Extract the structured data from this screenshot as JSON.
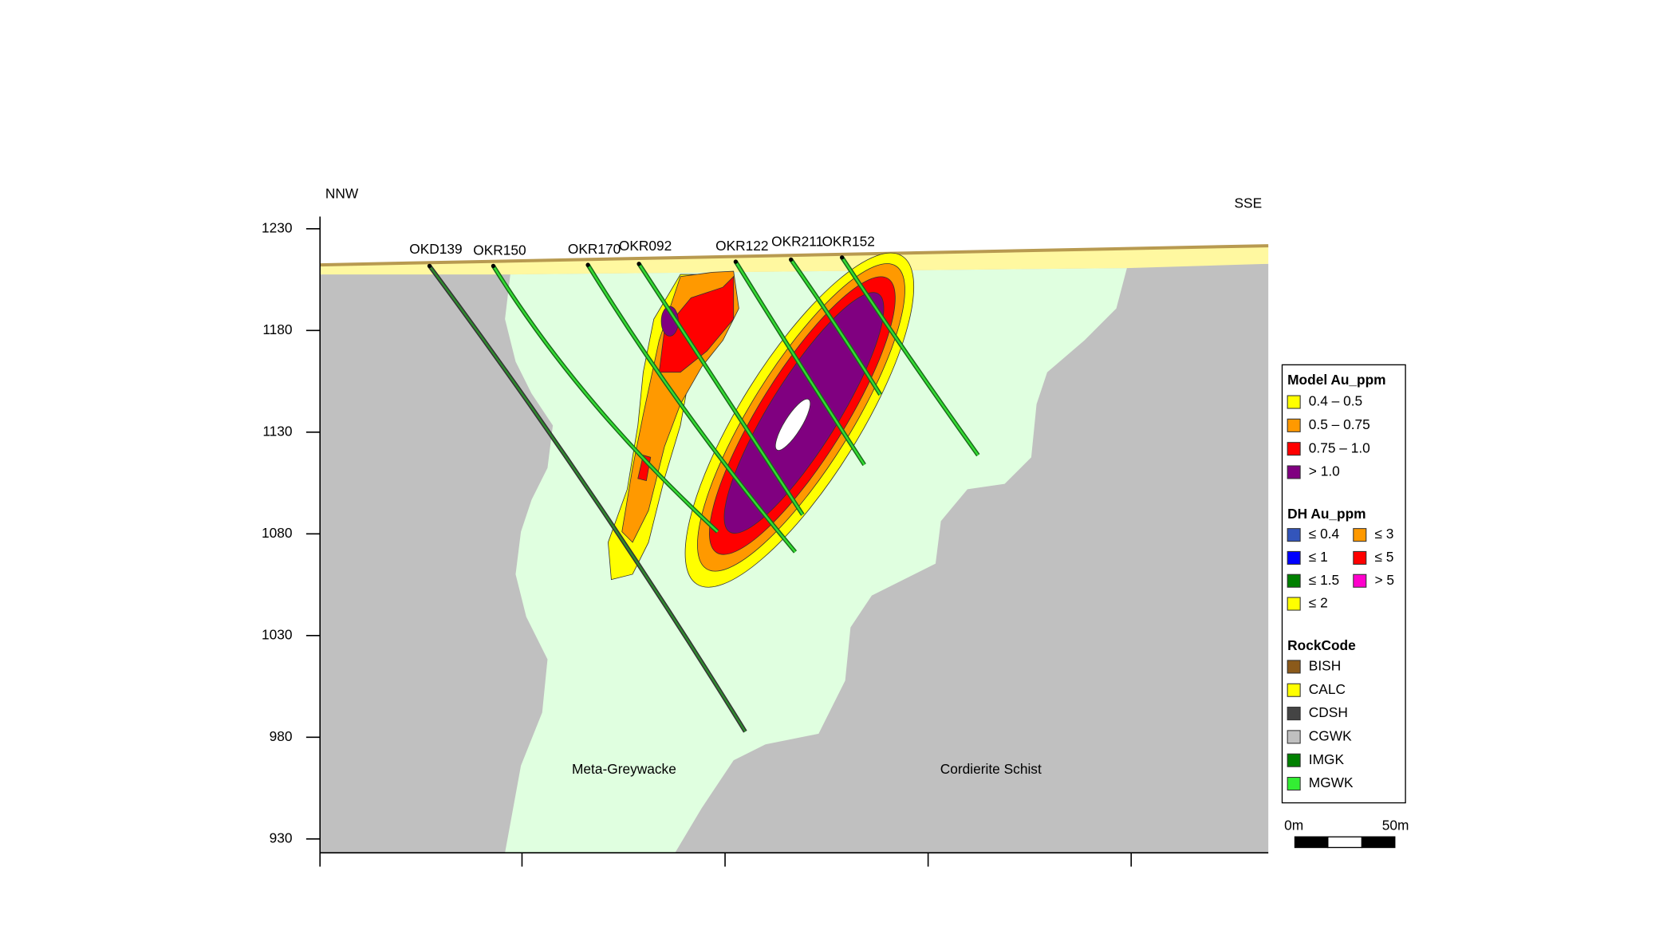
{
  "labels": {
    "left_direction": "NNW",
    "right_direction": "SSE"
  },
  "axis": {
    "ylim": [
      923,
      1236
    ],
    "ticks": [
      1230,
      1180,
      1130,
      1080,
      1030,
      980,
      930
    ]
  },
  "drillholes": [
    "OKD139",
    "OKR150",
    "OKR170",
    "OKR092",
    "OKR122",
    "OKR211",
    "OKR152"
  ],
  "rock_labels": [
    "Meta-Greywacke",
    "Cordierite Schist"
  ],
  "legend": {
    "sections": [
      {
        "title": "Model Au_ppm",
        "items": [
          {
            "label": "0.4 – 0.5",
            "color": "#ffff00"
          },
          {
            "label": "0.5 – 0.75",
            "color": "#ff9900"
          },
          {
            "label": "0.75 – 1.0",
            "color": "#ff0000"
          },
          {
            "label": "> 1.0",
            "color": "#800080"
          }
        ]
      },
      {
        "title": "DH Au_ppm",
        "items": [
          {
            "label": "≤ 0.4",
            "color": "#3355bb"
          },
          {
            "label": "≤ 1",
            "color": "#0000ff"
          },
          {
            "label": "≤ 1.5",
            "color": "#008000"
          },
          {
            "label": "≤ 2",
            "color": "#ffff00"
          },
          {
            "label": "≤ 3",
            "color": "#ff9900"
          },
          {
            "label": "≤ 5",
            "color": "#ff0000"
          },
          {
            "label": "> 5",
            "color": "#ff00cc"
          }
        ]
      },
      {
        "title": "RockCode",
        "items": [
          {
            "label": "BISH",
            "color": "#8b5a1a"
          },
          {
            "label": "CALC",
            "color": "#ffff00"
          },
          {
            "label": "CDSH",
            "color": "#444444"
          },
          {
            "label": "CGWK",
            "color": "#c0c0c0"
          },
          {
            "label": "IMGK",
            "color": "#008000"
          },
          {
            "label": "MGWK",
            "color": "#33ee33"
          }
        ]
      }
    ]
  },
  "scale_bar": {
    "start": "0m",
    "end": "50m"
  }
}
